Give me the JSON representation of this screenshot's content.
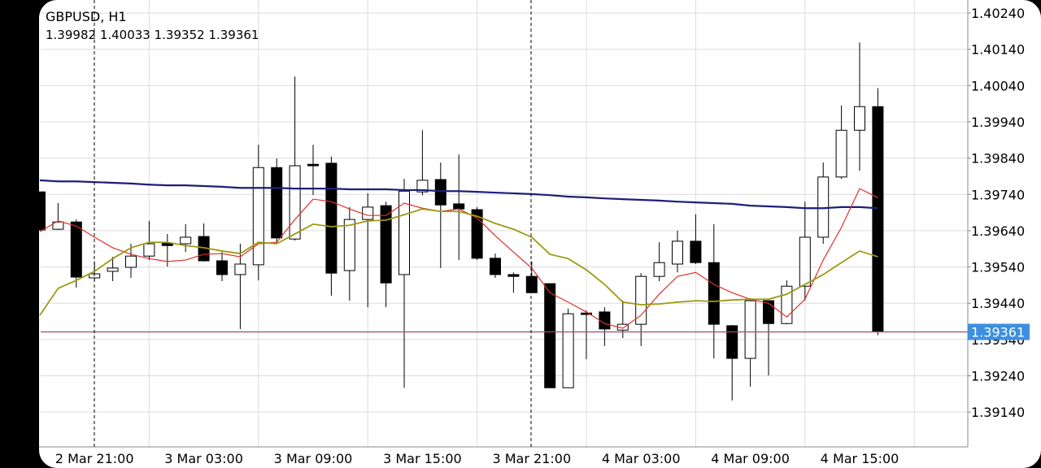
{
  "chart_data": {
    "type": "candlestick",
    "title": "GBPUSD, H1",
    "categories": [
      null,
      null,
      null,
      "2 Mar 21:00",
      null,
      null,
      null,
      null,
      null,
      "3 Mar 03:00",
      null,
      null,
      null,
      null,
      null,
      "3 Mar 09:00",
      null,
      null,
      null,
      null,
      null,
      "3 Mar 15:00",
      null,
      null,
      null,
      null,
      null,
      "3 Mar 21:00",
      null,
      null,
      null,
      null,
      null,
      "4 Mar 03:00",
      null,
      null,
      null,
      null,
      null,
      "4 Mar 09:00",
      null,
      null,
      null,
      null,
      null,
      "4 Mar 15:00",
      null
    ],
    "open": [
      1.39747,
      1.39644,
      1.39664,
      1.3951,
      1.39528,
      1.39539,
      1.3957,
      1.39606,
      1.39604,
      1.39624,
      1.39557,
      1.39519,
      1.39546,
      1.39814,
      1.39617,
      1.39823,
      1.39826,
      1.3953,
      1.39671,
      1.39709,
      1.39519,
      1.39747,
      1.39781,
      1.39714,
      1.39698,
      1.39564,
      1.39519,
      1.39514,
      1.39494,
      1.39207,
      1.39413,
      1.39416,
      1.39366,
      1.39382,
      1.39514,
      1.39548,
      1.39611,
      1.39552,
      1.39378,
      1.39288,
      1.39447,
      1.39384,
      1.39487,
      1.39622,
      1.39788,
      1.39917,
      1.39982
    ],
    "high": [
      1.39747,
      1.39716,
      1.39671,
      1.39555,
      1.39568,
      1.39604,
      1.39667,
      1.39631,
      1.39658,
      1.3966,
      1.39581,
      1.39604,
      1.39877,
      1.39839,
      1.40065,
      1.39877,
      1.39844,
      1.39705,
      1.39743,
      1.3972,
      1.39783,
      1.39917,
      1.39828,
      1.3985,
      1.39705,
      1.39577,
      1.39525,
      1.39555,
      1.39494,
      1.39425,
      1.3942,
      1.39429,
      1.39447,
      1.39523,
      1.39608,
      1.3964,
      1.39685,
      1.39658,
      1.3938,
      1.39454,
      1.39447,
      1.39503,
      1.3972,
      1.39828,
      1.39985,
      1.40159,
      1.40033
    ],
    "low": [
      1.39642,
      1.39642,
      1.39483,
      1.39501,
      1.39501,
      1.3951,
      1.39559,
      1.39541,
      1.39581,
      1.39555,
      1.39501,
      1.39369,
      1.39503,
      1.39604,
      1.39613,
      1.39738,
      1.39461,
      1.39447,
      1.39429,
      1.39429,
      1.39207,
      1.39738,
      1.39537,
      1.39559,
      1.39559,
      1.3951,
      1.39469,
      1.39469,
      1.39207,
      1.39207,
      1.39286,
      1.39322,
      1.39344,
      1.39322,
      1.39501,
      1.39525,
      1.39548,
      1.39288,
      1.39172,
      1.3921,
      1.39241,
      1.39382,
      1.39447,
      1.39604,
      1.39783,
      1.39805,
      1.39352
    ],
    "close": [
      1.39642,
      1.39664,
      1.39512,
      1.39521,
      1.39537,
      1.3957,
      1.39604,
      1.39599,
      1.39622,
      1.39557,
      1.39519,
      1.39548,
      1.39814,
      1.3962,
      1.39819,
      1.39819,
      1.39523,
      1.39671,
      1.39705,
      1.39496,
      1.39749,
      1.39779,
      1.39711,
      1.397,
      1.39564,
      1.39519,
      1.39514,
      1.39469,
      1.39207,
      1.39411,
      1.39409,
      1.39369,
      1.39382,
      1.39514,
      1.39552,
      1.39611,
      1.39552,
      1.39382,
      1.39288,
      1.39447,
      1.39384,
      1.39487,
      1.39622,
      1.39788,
      1.39917,
      1.39982,
      1.39361
    ],
    "up_color": "#ffffff",
    "down_color": "#000000",
    "overlays": [
      {
        "color": "#1c1f7a",
        "values": [
          1.39779,
          1.39776,
          1.39776,
          1.39774,
          1.39772,
          1.3977,
          1.39767,
          1.39765,
          1.39765,
          1.39763,
          1.39761,
          1.39758,
          1.39758,
          1.39758,
          1.39756,
          1.39756,
          1.39756,
          1.39754,
          1.39754,
          1.39754,
          1.39752,
          1.39752,
          1.39749,
          1.39749,
          1.39747,
          1.39745,
          1.39743,
          1.39741,
          1.39738,
          1.39734,
          1.39732,
          1.39729,
          1.39727,
          1.39725,
          1.39723,
          1.3972,
          1.39718,
          1.39716,
          1.39714,
          1.39709,
          1.39707,
          1.39705,
          1.39702,
          1.39702,
          1.39705,
          1.39705,
          1.39702
        ]
      },
      {
        "color": "#e0302a",
        "values": [
          1.39637,
          1.39667,
          1.39653,
          1.39622,
          1.39593,
          1.39575,
          1.39563,
          1.39555,
          1.39559,
          1.39575,
          1.39577,
          1.39568,
          1.39604,
          1.39608,
          1.39671,
          1.39727,
          1.3972,
          1.397,
          1.39682,
          1.39682,
          1.39716,
          1.39702,
          1.39693,
          1.397,
          1.39675,
          1.39626,
          1.39581,
          1.39537,
          1.39469,
          1.39443,
          1.39416,
          1.39384,
          1.39371,
          1.39407,
          1.39465,
          1.39514,
          1.39525,
          1.39492,
          1.39469,
          1.39451,
          1.3944,
          1.39402,
          1.39451,
          1.39559,
          1.39649,
          1.39756,
          1.39731
        ]
      },
      {
        "color": "#9c9a10",
        "values": [
          1.39407,
          1.39481,
          1.39503,
          1.39528,
          1.39563,
          1.39593,
          1.39608,
          1.39608,
          1.39599,
          1.39593,
          1.39584,
          1.39577,
          1.39608,
          1.39604,
          1.39631,
          1.39658,
          1.39651,
          1.39655,
          1.39667,
          1.39669,
          1.39684,
          1.397,
          1.39693,
          1.39693,
          1.3968,
          1.3966,
          1.39644,
          1.39622,
          1.39575,
          1.39563,
          1.39532,
          1.39492,
          1.39443,
          1.39436,
          1.39438,
          1.39443,
          1.39447,
          1.39445,
          1.39449,
          1.39451,
          1.39451,
          1.39465,
          1.39492,
          1.39519,
          1.39552,
          1.39584,
          1.39568
        ]
      }
    ],
    "price_line_color": "#a04a6a",
    "price_label_color": "#3d8fe0",
    "ylim": [
      1.39044,
      1.40276
    ],
    "yticks": [
      {
        "value": 1.4024,
        "label": "1.40240"
      },
      {
        "value": 1.4014,
        "label": "1.40140"
      },
      {
        "value": 1.4004,
        "label": "1.40040"
      },
      {
        "value": 1.3994,
        "label": "1.39940"
      },
      {
        "value": 1.3984,
        "label": "1.39840"
      },
      {
        "value": 1.3974,
        "label": "1.39740"
      },
      {
        "value": 1.3964,
        "label": "1.39640"
      },
      {
        "value": 1.3954,
        "label": "1.39540"
      },
      {
        "value": 1.3944,
        "label": "1.39440"
      },
      {
        "value": 1.3934,
        "label": "1.39340"
      },
      {
        "value": 1.3924,
        "label": "1.39240"
      },
      {
        "value": 1.3914,
        "label": "1.39140"
      }
    ],
    "grid": true
  }
}
